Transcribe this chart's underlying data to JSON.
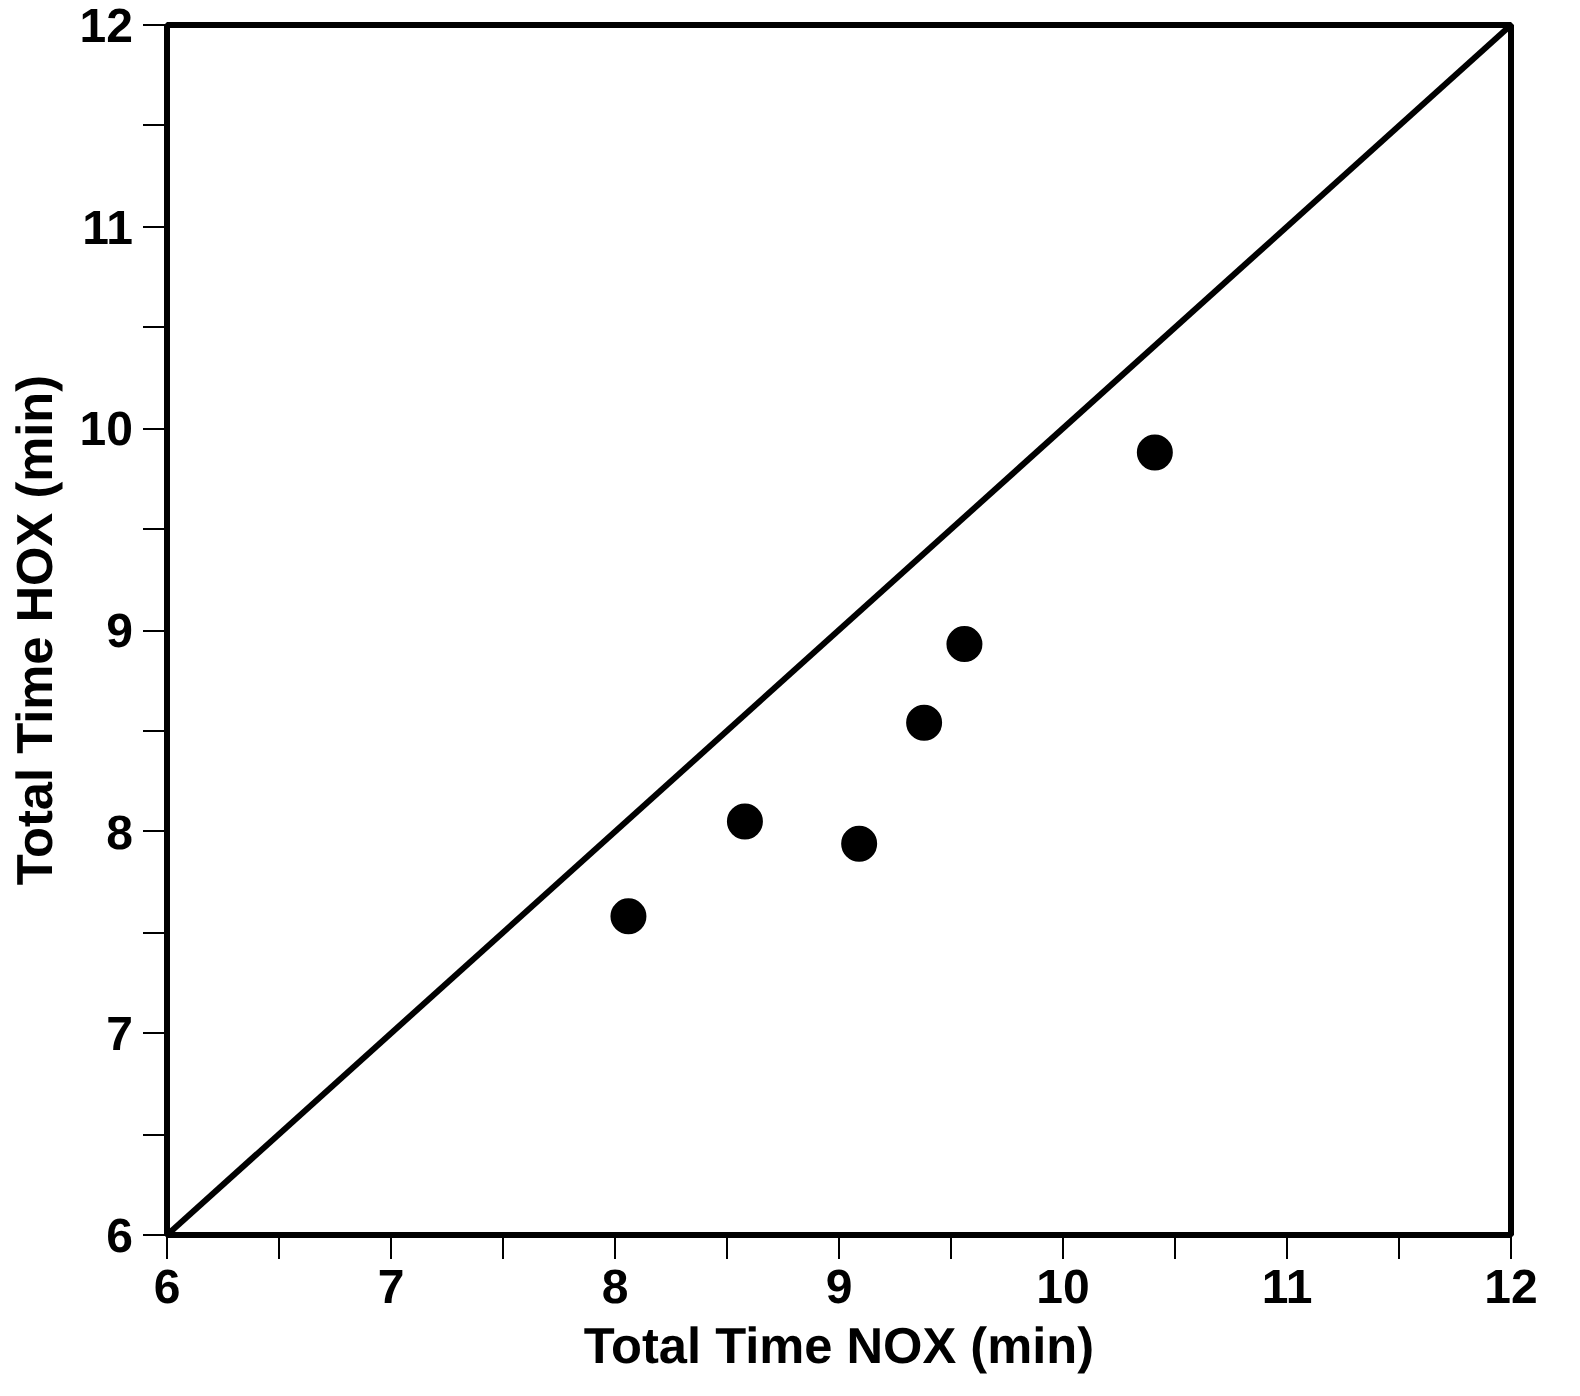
{
  "chart_data": {
    "type": "scatter",
    "xlabel": "Total Time NOX (min)",
    "ylabel": "Total Time HOX (min)",
    "xlim": [
      6,
      12
    ],
    "ylim": [
      6,
      12
    ],
    "xticks": [
      6,
      {
        "value": 6.5,
        "label": null
      },
      7,
      {
        "value": 7.5,
        "label": null
      },
      8,
      {
        "value": 8.5,
        "label": null
      },
      9,
      {
        "value": 9.5,
        "label": null
      },
      10,
      {
        "value": 10.5,
        "label": null
      },
      11,
      {
        "value": 11.5,
        "label": null
      },
      12
    ],
    "yticks": [
      6,
      {
        "value": 6.5,
        "label": null
      },
      7,
      {
        "value": 7.5,
        "label": null
      },
      8,
      {
        "value": 8.5,
        "label": null
      },
      9,
      {
        "value": 9.5,
        "label": null
      },
      10,
      {
        "value": 10.5,
        "label": null
      },
      11,
      {
        "value": 11.5,
        "label": null
      },
      12
    ],
    "grid": false,
    "marker": "circle",
    "series": [
      {
        "color": "#000000",
        "x": [
          8.06,
          8.58,
          9.09,
          9.38,
          9.56,
          10.41
        ],
        "values": [
          7.58,
          8.05,
          7.94,
          8.54,
          8.93,
          9.88
        ]
      },
      {
        "type": "line",
        "color": "#000000",
        "line_style": "solid",
        "marker": "none",
        "x": [
          6,
          12
        ],
        "values": [
          6,
          12
        ]
      }
    ]
  }
}
